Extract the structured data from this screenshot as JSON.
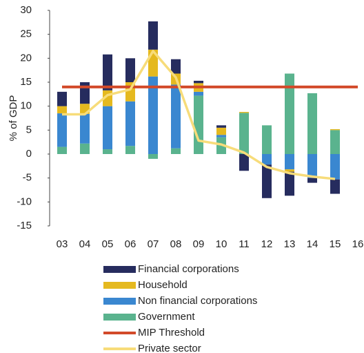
{
  "chart_data": {
    "type": "bar",
    "stacked": true,
    "ylabel": "% of GDP",
    "categories": [
      "03",
      "04",
      "05",
      "06",
      "07",
      "08",
      "09",
      "10",
      "11",
      "12",
      "13",
      "14",
      "15",
      "16"
    ],
    "ylim": [
      -15,
      30
    ],
    "yticks": [
      -15,
      -10,
      -5,
      0,
      5,
      10,
      15,
      20,
      25,
      30
    ],
    "series": [
      {
        "name": "Financial corporations",
        "color": "#262c5e",
        "values": [
          3,
          4.5,
          7.5,
          5,
          5.9,
          3,
          0.5,
          0.5,
          -3.5,
          -7,
          -5,
          -1,
          -3,
          null
        ]
      },
      {
        "name": "Household",
        "color": "#e5b91f",
        "values": [
          1.5,
          2.1,
          3.3,
          4,
          5.6,
          2.3,
          1.8,
          1.5,
          0.2,
          0,
          -0.5,
          0,
          0.2,
          null
        ]
      },
      {
        "name": "Non financial corporations",
        "color": "#3a87d0",
        "values": [
          7,
          6.2,
          9,
          9.3,
          16.2,
          13.3,
          0.8,
          0.5,
          0,
          -2.2,
          -3.2,
          -5,
          -5.3,
          null
        ]
      },
      {
        "name": "Government",
        "color": "#5ab38e",
        "values": [
          1.5,
          2.2,
          1,
          1.7,
          -1,
          1.2,
          12.2,
          3.5,
          8.6,
          6,
          16.8,
          12.7,
          5,
          null
        ]
      },
      {
        "name": "MIP Threshold",
        "color": "#d24a2a",
        "type": "line",
        "values": [
          14,
          14,
          14,
          14,
          14,
          14,
          14,
          14,
          14,
          14,
          14,
          14,
          14,
          14
        ]
      },
      {
        "name": "Private sector",
        "color": "#f7dc7a",
        "type": "line",
        "values": [
          8.3,
          8.3,
          12.3,
          13.5,
          21.5,
          16,
          2.8,
          2,
          0.3,
          -2.7,
          -4,
          -4.7,
          -5.2,
          null
        ]
      }
    ]
  }
}
